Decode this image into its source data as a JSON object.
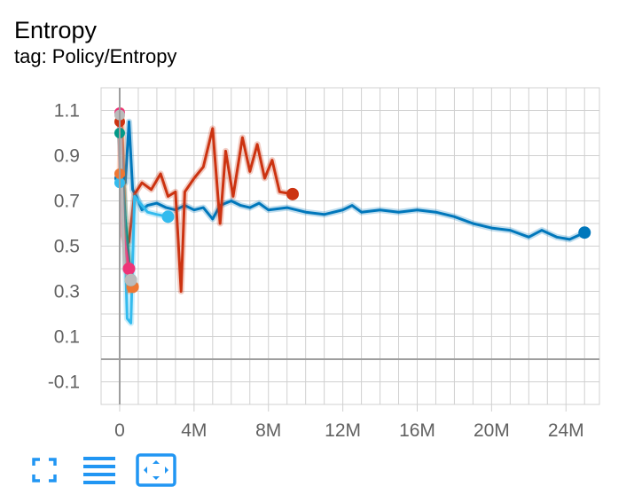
{
  "card": {
    "title": "Entropy",
    "subtitle": "tag: Policy/Entropy"
  },
  "toolbar": {
    "buttons": [
      {
        "name": "expand-chart-button",
        "icon": "fullscreen-icon"
      },
      {
        "name": "toggle-log-scale-button",
        "icon": "list-lines-icon"
      },
      {
        "name": "fit-domain-button",
        "icon": "fit-to-data-icon"
      }
    ]
  },
  "colors": {
    "accent": "#2196f3",
    "grid": "#d0d0d0",
    "zero_line": "#9e9e9e"
  },
  "chart_data": {
    "type": "line",
    "title": "Entropy",
    "subtitle": "tag: Policy/Entropy",
    "xlabel": "",
    "ylabel": "",
    "xlim": [
      -1000000,
      25800000
    ],
    "ylim": [
      -0.2,
      1.2
    ],
    "x_ticks": [
      {
        "value": 0,
        "label": "0"
      },
      {
        "value": 4000000,
        "label": "4M"
      },
      {
        "value": 8000000,
        "label": "8M"
      },
      {
        "value": 12000000,
        "label": "12M"
      },
      {
        "value": 16000000,
        "label": "16M"
      },
      {
        "value": 20000000,
        "label": "20M"
      },
      {
        "value": 24000000,
        "label": "24M"
      }
    ],
    "y_ticks": [
      {
        "value": 1.1,
        "label": "1.1"
      },
      {
        "value": 0.9,
        "label": "0.9"
      },
      {
        "value": 0.7,
        "label": "0.7"
      },
      {
        "value": 0.5,
        "label": "0.5"
      },
      {
        "value": 0.3,
        "label": "0.3"
      },
      {
        "value": 0.1,
        "label": "0.1"
      },
      {
        "value": -0.1,
        "label": "-0.1"
      }
    ],
    "grid": true,
    "series": [
      {
        "color": "#0077bb",
        "points": [
          [
            0,
            0.8
          ],
          [
            300000,
            0.78
          ],
          [
            500000,
            1.05
          ],
          [
            700000,
            0.75
          ],
          [
            900000,
            0.72
          ],
          [
            1200000,
            0.66
          ],
          [
            1500000,
            0.68
          ],
          [
            2000000,
            0.69
          ],
          [
            2500000,
            0.67
          ],
          [
            3000000,
            0.66
          ],
          [
            3500000,
            0.68
          ],
          [
            4000000,
            0.66
          ],
          [
            4500000,
            0.67
          ],
          [
            5000000,
            0.62
          ],
          [
            5400000,
            0.68
          ],
          [
            6000000,
            0.7
          ],
          [
            6500000,
            0.68
          ],
          [
            7000000,
            0.67
          ],
          [
            7500000,
            0.69
          ],
          [
            8000000,
            0.66
          ],
          [
            9000000,
            0.67
          ],
          [
            10000000,
            0.65
          ],
          [
            11000000,
            0.64
          ],
          [
            12000000,
            0.66
          ],
          [
            12500000,
            0.68
          ],
          [
            13000000,
            0.65
          ],
          [
            14000000,
            0.66
          ],
          [
            15000000,
            0.65
          ],
          [
            16000000,
            0.66
          ],
          [
            17000000,
            0.65
          ],
          [
            18000000,
            0.63
          ],
          [
            19000000,
            0.6
          ],
          [
            20000000,
            0.58
          ],
          [
            21000000,
            0.57
          ],
          [
            22000000,
            0.54
          ],
          [
            22700000,
            0.57
          ],
          [
            23500000,
            0.54
          ],
          [
            24200000,
            0.53
          ],
          [
            25000000,
            0.56
          ]
        ]
      },
      {
        "color": "#cc3311",
        "points": [
          [
            0,
            1.05
          ],
          [
            100000,
            0.9
          ],
          [
            200000,
            0.55
          ],
          [
            350000,
            0.5
          ],
          [
            500000,
            0.52
          ],
          [
            800000,
            0.73
          ],
          [
            1200000,
            0.78
          ],
          [
            1700000,
            0.75
          ],
          [
            2200000,
            0.82
          ],
          [
            2600000,
            0.72
          ],
          [
            3000000,
            0.74
          ],
          [
            3300000,
            0.3
          ],
          [
            3500000,
            0.74
          ],
          [
            4000000,
            0.8
          ],
          [
            4500000,
            0.85
          ],
          [
            5000000,
            1.02
          ],
          [
            5400000,
            0.6
          ],
          [
            5700000,
            0.92
          ],
          [
            6100000,
            0.72
          ],
          [
            6600000,
            0.98
          ],
          [
            7000000,
            0.83
          ],
          [
            7400000,
            0.95
          ],
          [
            7800000,
            0.8
          ],
          [
            8200000,
            0.88
          ],
          [
            8600000,
            0.74
          ],
          [
            9300000,
            0.73
          ]
        ]
      },
      {
        "color": "#33bbee",
        "points": [
          [
            0,
            0.78
          ],
          [
            200000,
            0.75
          ],
          [
            400000,
            0.18
          ],
          [
            600000,
            0.16
          ],
          [
            800000,
            0.72
          ],
          [
            1500000,
            0.65
          ],
          [
            2000000,
            0.64
          ],
          [
            2600000,
            0.63
          ]
        ]
      },
      {
        "color": "#ee7733",
        "points": [
          [
            0,
            0.82
          ],
          [
            100000,
            1.1
          ],
          [
            300000,
            0.6
          ],
          [
            500000,
            0.3
          ],
          [
            700000,
            0.32
          ]
        ]
      },
      {
        "color": "#009988",
        "points": [
          [
            0,
            1.0
          ],
          [
            300000,
            0.62
          ],
          [
            600000,
            0.35
          ]
        ]
      },
      {
        "color": "#ee3377",
        "points": [
          [
            0,
            1.09
          ],
          [
            200000,
            0.55
          ],
          [
            500000,
            0.4
          ]
        ]
      },
      {
        "color": "#bbbbbb",
        "points": [
          [
            0,
            1.08
          ],
          [
            250000,
            0.4
          ],
          [
            600000,
            0.35
          ]
        ]
      }
    ]
  }
}
